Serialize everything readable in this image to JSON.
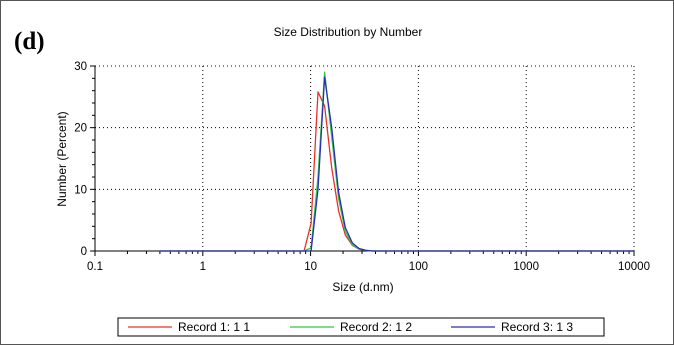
{
  "panel_label": "(d)",
  "chart_data": {
    "type": "line",
    "title": "Size Distribution by Number",
    "xlabel": "Size (d.nm)",
    "ylabel": "Number (Percent)",
    "xscale": "log",
    "xlim": [
      0.1,
      10000
    ],
    "ylim": [
      0,
      30
    ],
    "x_ticks": [
      0.1,
      1,
      10,
      100,
      1000,
      10000
    ],
    "x_tick_labels": [
      "0.1",
      "1",
      "10",
      "100",
      "1000",
      "10000"
    ],
    "y_ticks": [
      0,
      10,
      20,
      30
    ],
    "y_tick_labels": [
      "0",
      "10",
      "20",
      "30"
    ],
    "grid": "dotted",
    "legend_position": "bottom",
    "series": [
      {
        "name": "Record 1: 1 1",
        "color": "#e8302a",
        "x": [
          0.4,
          1,
          3,
          7.5,
          8.7,
          10.1,
          11.7,
          13.5,
          15.7,
          18.2,
          21,
          24.4,
          28.2,
          32.7,
          37.8,
          43.8,
          50.7,
          80,
          200,
          1000,
          10000
        ],
        "y": [
          0,
          0,
          0,
          0,
          0,
          4.5,
          25.8,
          23.5,
          13.5,
          6.5,
          2.6,
          0.9,
          0.3,
          0.1,
          0,
          0,
          0,
          0,
          0,
          0,
          0
        ]
      },
      {
        "name": "Record 2: 1 2",
        "color": "#2fc84a",
        "x": [
          0.4,
          1,
          3,
          8.7,
          10.1,
          11.7,
          13.5,
          15.7,
          18.2,
          21,
          24.4,
          28.2,
          32.7,
          37.8,
          43.8,
          50.7,
          80,
          200,
          1000,
          10000
        ],
        "y": [
          0,
          0,
          0,
          0,
          0.5,
          12,
          29,
          18.5,
          8.5,
          3.2,
          1,
          0.3,
          0.1,
          0,
          0,
          0,
          0,
          0,
          0,
          0
        ]
      },
      {
        "name": "Record 3: 1 3",
        "color": "#2b2fb0",
        "x": [
          0.4,
          1,
          3,
          8.7,
          10.1,
          11.7,
          13.5,
          15.7,
          18.2,
          21,
          24.4,
          28.2,
          32.7,
          37.8,
          43.8,
          50.7,
          80,
          200,
          1000,
          10000
        ],
        "y": [
          0,
          0,
          0,
          0,
          0,
          10,
          28.2,
          20,
          9.5,
          3.8,
          1.3,
          0.4,
          0.1,
          0,
          0,
          0,
          0,
          0,
          0,
          0
        ]
      }
    ]
  }
}
